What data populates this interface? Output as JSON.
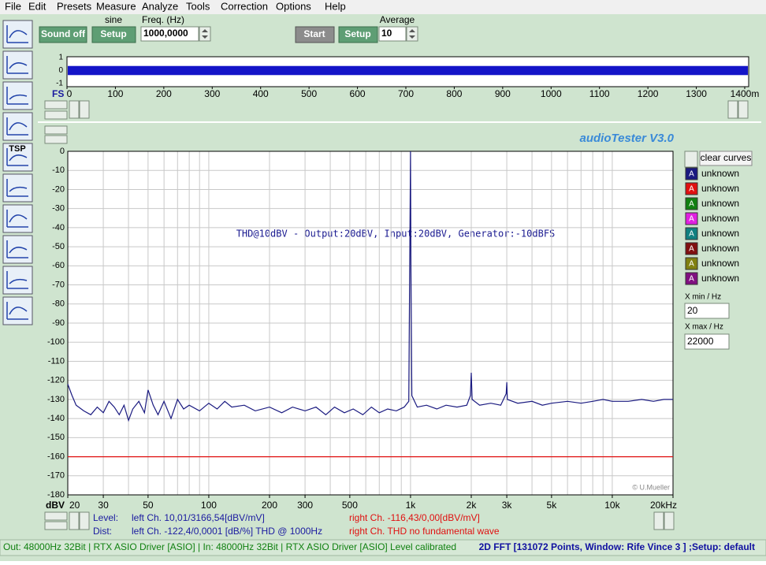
{
  "menu": [
    "File",
    "Edit",
    "Presets",
    "Measure",
    "Analyze",
    "Tools",
    "Correction",
    "Options",
    "Help"
  ],
  "toolbar": {
    "sound_button": "Sound off",
    "wave_label": "sine",
    "setup_button": "Setup",
    "freq_label": "Freq. (Hz)",
    "freq_value": "1000,0000",
    "start_button": "Start",
    "avg_setup_button": "Setup",
    "average_label": "Average",
    "average_value": "10"
  },
  "tool_icon_text": "TSP",
  "chart_data": [
    {
      "type": "band",
      "x_label": "FS",
      "xlim": [
        0,
        1400
      ],
      "xticks": [
        0,
        100,
        200,
        300,
        400,
        500,
        600,
        700,
        800,
        900,
        1000,
        1100,
        1200,
        1300,
        {
          "value": 1400,
          "label": "1400m"
        }
      ],
      "ylim": [
        -1,
        1
      ],
      "yticks": [
        1,
        0,
        -1
      ],
      "band": [
        -0.35,
        0.35
      ],
      "color": "#1414c8"
    },
    {
      "type": "line",
      "title": "audioTester  V3.0",
      "annotation": "THD@10dBV - Output:20dBV, Input:20dBV, Generator:-10dBFS",
      "credit": "© U.Mueller",
      "y_unit": "dBV",
      "xscale": "log",
      "xlim": [
        20,
        20000
      ],
      "ylim": [
        -180,
        0
      ],
      "xticks": [
        20,
        30,
        50,
        100,
        200,
        300,
        500,
        {
          "value": 1000,
          "label": "1k"
        },
        {
          "value": 2000,
          "label": "2k"
        },
        {
          "value": 3000,
          "label": "3k"
        },
        {
          "value": 5000,
          "label": "5k"
        },
        {
          "value": 10000,
          "label": "10k"
        },
        {
          "value": 20000,
          "label": "20kHz"
        }
      ],
      "xgrid": [
        20,
        30,
        40,
        50,
        60,
        70,
        80,
        90,
        100,
        200,
        300,
        400,
        500,
        600,
        700,
        800,
        900,
        1000,
        2000,
        3000,
        4000,
        5000,
        6000,
        7000,
        8000,
        9000,
        10000,
        20000
      ],
      "yticks": [
        0,
        -10,
        -20,
        -30,
        -40,
        -50,
        -60,
        -70,
        -80,
        -90,
        -100,
        -110,
        -120,
        -130,
        -140,
        -150,
        -160,
        -170,
        -180
      ],
      "grid": true,
      "marker_label": "A",
      "clear_button": "clear curves",
      "series": [
        {
          "name": "unknown",
          "color": "#1a1a80",
          "x": [
            20,
            21,
            22,
            24,
            26,
            28,
            30,
            32,
            34,
            36,
            38,
            40,
            42,
            45,
            48,
            50,
            53,
            56,
            60,
            65,
            70,
            75,
            80,
            90,
            100,
            110,
            120,
            130,
            150,
            170,
            200,
            230,
            260,
            300,
            340,
            380,
            420,
            470,
            520,
            580,
            640,
            700,
            770,
            850,
            930,
            980,
            1000,
            1005,
            1015,
            1080,
            1200,
            1350,
            1500,
            1700,
            1900,
            1980,
            2000,
            2020,
            2200,
            2500,
            2800,
            2980,
            3000,
            3020,
            3400,
            4000,
            4500,
            5000,
            6000,
            7000,
            8000,
            9000,
            10000,
            12000,
            14000,
            16000,
            18000,
            20000
          ],
          "values": [
            -122,
            -128,
            -133,
            -136,
            -138,
            -134,
            -137,
            -131,
            -134,
            -138,
            -133,
            -141,
            -135,
            -131,
            -137,
            -125,
            -133,
            -138,
            -131,
            -140,
            -130,
            -135,
            -133,
            -136,
            -132,
            -135,
            -131,
            -134,
            -133,
            -136,
            -134,
            -137,
            -134,
            -136,
            -134,
            -138,
            -134,
            -137,
            -135,
            -138,
            -134,
            -137,
            -135,
            -136,
            -134,
            -131,
            0,
            -63,
            -128,
            -134,
            -133,
            -135,
            -133,
            -134,
            -133,
            -128,
            -116,
            -130,
            -133,
            -132,
            -133,
            -127,
            -121,
            -130,
            -132,
            -131,
            -133,
            -132,
            -131,
            -132,
            -131,
            -130,
            -131,
            -131,
            -130,
            -131,
            -130,
            -130
          ]
        },
        {
          "name": "unknown",
          "color": "#e01010",
          "x": [
            20,
            20000
          ],
          "values": [
            -160,
            -160
          ]
        },
        {
          "name": "unknown",
          "color": "#108010",
          "x": [],
          "values": []
        },
        {
          "name": "unknown",
          "color": "#e020e0",
          "x": [],
          "values": []
        },
        {
          "name": "unknown",
          "color": "#108080",
          "x": [],
          "values": []
        },
        {
          "name": "unknown",
          "color": "#801010",
          "x": [],
          "values": []
        },
        {
          "name": "unknown",
          "color": "#808010",
          "x": [],
          "values": []
        },
        {
          "name": "unknown",
          "color": "#801080",
          "x": [],
          "values": []
        }
      ]
    }
  ],
  "range_panel": {
    "xmin_label": "X min / Hz",
    "xmin_value": "20",
    "xmax_label": "X max / Hz",
    "xmax_value": "22000"
  },
  "readout": {
    "level_label": "Level:",
    "level_left": "left Ch. 10,01/3166,54[dBV/mV]",
    "level_right": "right Ch. -116,43/0,00[dBV/mV]",
    "dist_label": "Dist:",
    "dist_left": "left Ch. -122,4/0,0001 [dB/%] THD @ 1000Hz",
    "dist_right": "right Ch. THD no fundamental wave"
  },
  "status": {
    "io": "Out: 48000Hz 32Bit  | RTX ASIO Driver [ASIO]  | In: 48000Hz 32Bit  | RTX ASIO Driver [ASIO]",
    "calibration": "Level calibrated",
    "mode": "2D FFT [131072 Points, Window: Rife Vince 3 ] ;Setup: default"
  }
}
